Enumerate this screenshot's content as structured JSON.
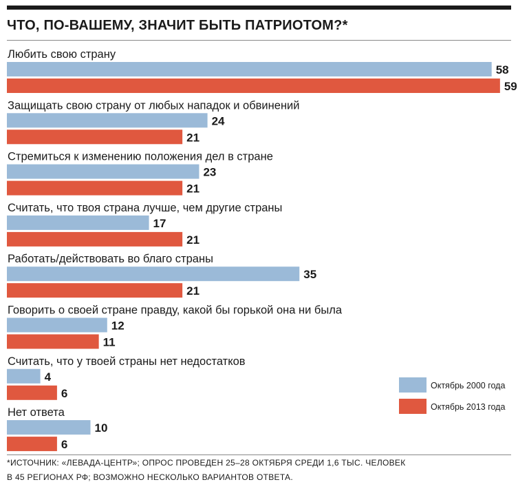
{
  "chart_data": {
    "type": "bar",
    "orientation": "horizontal",
    "title": "ЧТО, ПО-ВАШЕМУ, ЗНАЧИТ БЫТЬ ПАТРИОТОМ?*",
    "categories": [
      "Любить свою страну",
      "Защищать свою страну от любых нападок и обвинений",
      "Стремиться к изменению положения дел в стране",
      "Считать, что твоя страна лучше, чем другие страны",
      "Работать/действовать во благо страны",
      "Говорить о своей стране правду, какой бы горькой она ни была",
      "Считать, что у твоей страны нет недостатков",
      "Нет ответа"
    ],
    "series": [
      {
        "name": "Октябрь 2000 года",
        "color": "#9bbad8",
        "values": [
          58,
          24,
          23,
          17,
          35,
          12,
          4,
          10
        ]
      },
      {
        "name": "Октябрь 2013 года",
        "color": "#e0583f",
        "values": [
          59,
          21,
          21,
          21,
          21,
          11,
          6,
          6
        ]
      }
    ],
    "xlim": [
      0,
      59
    ],
    "grid": false,
    "legend_position": "right"
  },
  "footnote": {
    "line1": "*ИСТОЧНИК: «ЛЕВАДА-ЦЕНТР»; ОПРОС ПРОВЕДЕН 25–28 ОКТЯБРЯ СРЕДИ 1,6 ТЫС. ЧЕЛОВЕК",
    "line2": "В 45 РЕГИОНАХ РФ; ВОЗМОЖНО НЕСКОЛЬКО ВАРИАНТОВ ОТВЕТА."
  }
}
